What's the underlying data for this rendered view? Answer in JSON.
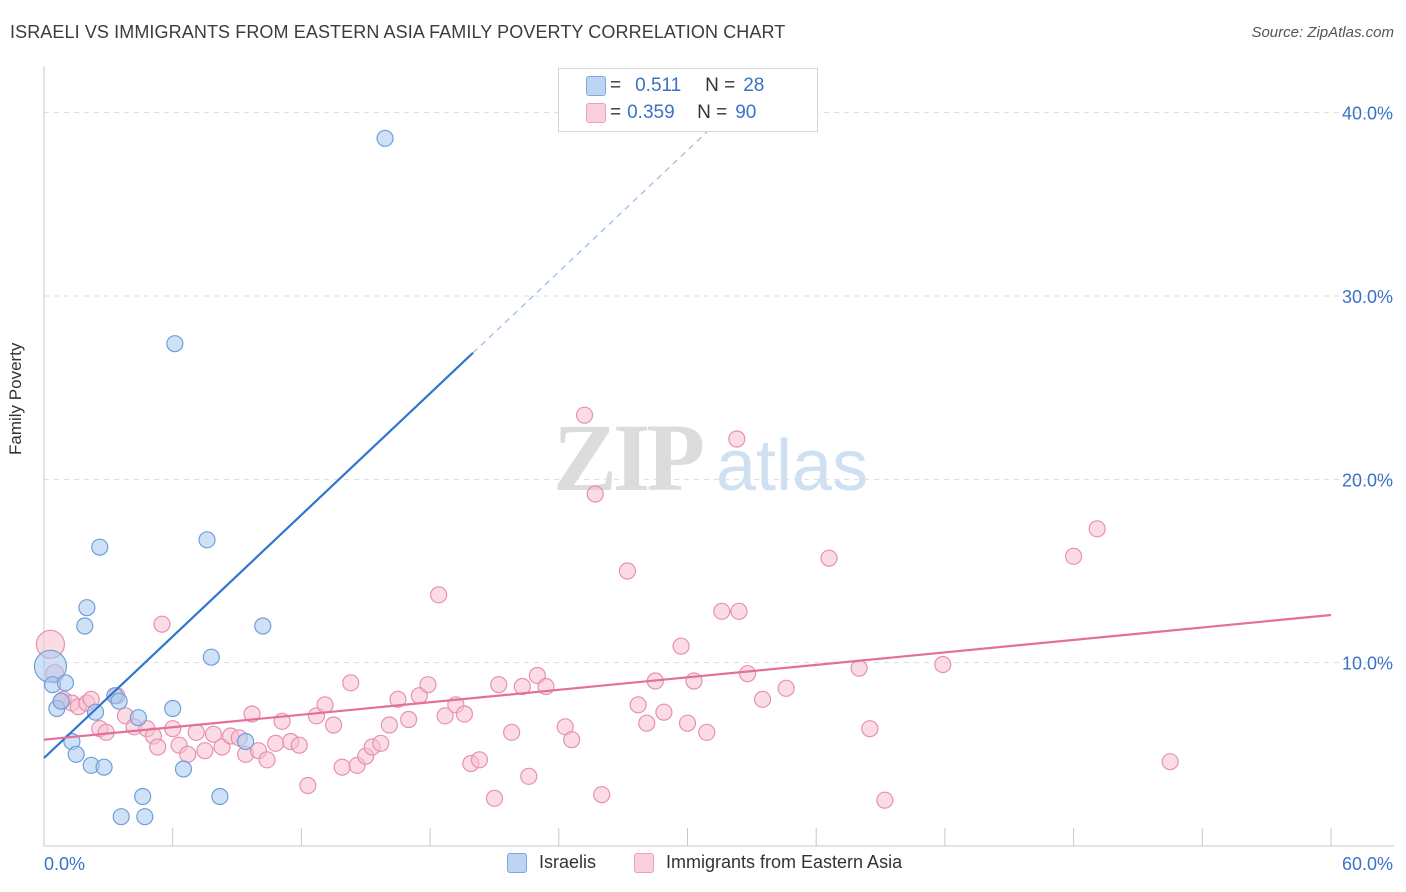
{
  "title": "ISRAELI VS IMMIGRANTS FROM EASTERN ASIA FAMILY POVERTY CORRELATION CHART",
  "source": "Source: ZipAtlas.com",
  "watermark": {
    "zip": "ZIP",
    "atlas": "atlas"
  },
  "legend_top": {
    "rows": [
      {
        "r_label": "R =",
        "r_value": "0.511",
        "n_label": "N =",
        "n_value": "28"
      },
      {
        "r_label": "R =",
        "r_value": "0.359",
        "n_label": "N =",
        "n_value": "90"
      }
    ]
  },
  "legend_bottom": {
    "items": [
      "Israelis",
      "Immigrants from Eastern Asia"
    ]
  },
  "colors": {
    "israelis_fill": "#a8c8f0",
    "israelis_stroke": "#6f9fd8",
    "israelis_line": "#2f74d0",
    "eastasia_fill": "#f8bfd0",
    "eastasia_stroke": "#e890ae",
    "eastasia_line": "#e2709a",
    "tick_label": "#3a72c7",
    "grid": "#dddddd"
  },
  "chart_data": {
    "type": "scatter",
    "title": "ISRAELI VS IMMIGRANTS FROM EASTERN ASIA FAMILY POVERTY CORRELATION CHART",
    "xlabel": "",
    "ylabel": "Family Poverty",
    "xlim": [
      0,
      60
    ],
    "ylim": [
      0,
      42
    ],
    "x_tick_labels": [
      "0.0%",
      "60.0%"
    ],
    "y_ticks": [
      10,
      20,
      30,
      40
    ],
    "y_tick_labels": [
      "10.0%",
      "20.0%",
      "30.0%",
      "40.0%"
    ],
    "grid": true,
    "legend_position": "top-center",
    "series": [
      {
        "name": "Israelis",
        "r": 0.511,
        "n": 28,
        "trend": {
          "x0": 0,
          "y0": 4.8,
          "x1": 20,
          "y1": 26.9,
          "dashed_to_x": 32.5
        },
        "points": [
          [
            0.3,
            9.8,
            16
          ],
          [
            0.4,
            8.8,
            8
          ],
          [
            0.6,
            7.5,
            8
          ],
          [
            0.8,
            7.9,
            8
          ],
          [
            1.0,
            8.9,
            8
          ],
          [
            1.3,
            5.7,
            8
          ],
          [
            1.5,
            5.0,
            8
          ],
          [
            1.9,
            12.0,
            8
          ],
          [
            2.0,
            13.0,
            8
          ],
          [
            2.2,
            4.4,
            8
          ],
          [
            2.4,
            7.3,
            8
          ],
          [
            2.6,
            16.3,
            8
          ],
          [
            2.8,
            4.3,
            8
          ],
          [
            3.3,
            8.2,
            8
          ],
          [
            3.5,
            7.9,
            8
          ],
          [
            3.6,
            1.6,
            8
          ],
          [
            4.4,
            7.0,
            8
          ],
          [
            4.6,
            2.7,
            8
          ],
          [
            4.7,
            1.6,
            8
          ],
          [
            6.0,
            7.5,
            8
          ],
          [
            6.1,
            27.4,
            8
          ],
          [
            6.5,
            4.2,
            8
          ],
          [
            7.6,
            16.7,
            8
          ],
          [
            7.8,
            10.3,
            8
          ],
          [
            8.2,
            2.7,
            8
          ],
          [
            9.4,
            5.7,
            8
          ],
          [
            10.2,
            12.0,
            8
          ],
          [
            15.9,
            38.6,
            8
          ]
        ]
      },
      {
        "name": "Immigrants from Eastern Asia",
        "r": 0.359,
        "n": 90,
        "trend": {
          "x0": 0,
          "y0": 5.8,
          "x1": 60,
          "y1": 12.6
        },
        "points": [
          [
            0.3,
            11.0,
            14
          ],
          [
            0.5,
            9.4,
            9
          ],
          [
            0.9,
            8.0,
            8
          ],
          [
            1.3,
            7.8,
            8
          ],
          [
            1.6,
            7.6,
            8
          ],
          [
            2.0,
            7.8,
            8
          ],
          [
            2.2,
            8.0,
            8
          ],
          [
            2.6,
            6.4,
            8
          ],
          [
            2.9,
            6.2,
            8
          ],
          [
            3.4,
            8.2,
            8
          ],
          [
            3.8,
            7.1,
            8
          ],
          [
            4.2,
            6.5,
            8
          ],
          [
            4.8,
            6.4,
            8
          ],
          [
            5.1,
            6.0,
            8
          ],
          [
            5.3,
            5.4,
            8
          ],
          [
            5.5,
            12.1,
            8
          ],
          [
            6.0,
            6.4,
            8
          ],
          [
            6.3,
            5.5,
            8
          ],
          [
            6.7,
            5.0,
            8
          ],
          [
            7.1,
            6.2,
            8
          ],
          [
            7.5,
            5.2,
            8
          ],
          [
            7.9,
            6.1,
            8
          ],
          [
            8.3,
            5.4,
            8
          ],
          [
            8.7,
            6.0,
            8
          ],
          [
            9.1,
            5.9,
            8
          ],
          [
            9.4,
            5.0,
            8
          ],
          [
            9.7,
            7.2,
            8
          ],
          [
            10.0,
            5.2,
            8
          ],
          [
            10.4,
            4.7,
            8
          ],
          [
            10.8,
            5.6,
            8
          ],
          [
            11.1,
            6.8,
            8
          ],
          [
            11.5,
            5.7,
            8
          ],
          [
            11.9,
            5.5,
            8
          ],
          [
            12.3,
            3.3,
            8
          ],
          [
            12.7,
            7.1,
            8
          ],
          [
            13.1,
            7.7,
            8
          ],
          [
            13.5,
            6.6,
            8
          ],
          [
            13.9,
            4.3,
            8
          ],
          [
            14.3,
            8.9,
            8
          ],
          [
            14.6,
            4.4,
            8
          ],
          [
            15.0,
            4.9,
            8
          ],
          [
            15.3,
            5.4,
            8
          ],
          [
            15.7,
            5.6,
            8
          ],
          [
            16.1,
            6.6,
            8
          ],
          [
            16.5,
            8.0,
            8
          ],
          [
            17.0,
            6.9,
            8
          ],
          [
            17.5,
            8.2,
            8
          ],
          [
            17.9,
            8.8,
            8
          ],
          [
            18.4,
            13.7,
            8
          ],
          [
            18.7,
            7.1,
            8
          ],
          [
            19.2,
            7.7,
            8
          ],
          [
            19.6,
            7.2,
            8
          ],
          [
            19.9,
            4.5,
            8
          ],
          [
            20.3,
            4.7,
            8
          ],
          [
            21.0,
            2.6,
            8
          ],
          [
            21.2,
            8.8,
            8
          ],
          [
            21.8,
            6.2,
            8
          ],
          [
            22.3,
            8.7,
            8
          ],
          [
            22.6,
            3.8,
            8
          ],
          [
            23.0,
            9.3,
            8
          ],
          [
            23.4,
            8.7,
            8
          ],
          [
            24.3,
            6.5,
            8
          ],
          [
            24.6,
            5.8,
            8
          ],
          [
            25.2,
            23.5,
            8
          ],
          [
            25.7,
            19.2,
            8
          ],
          [
            26.0,
            2.8,
            8
          ],
          [
            27.2,
            15.0,
            8
          ],
          [
            27.7,
            7.7,
            8
          ],
          [
            28.1,
            6.7,
            8
          ],
          [
            28.5,
            9.0,
            8
          ],
          [
            28.9,
            7.3,
            8
          ],
          [
            29.7,
            10.9,
            8
          ],
          [
            30.0,
            6.7,
            8
          ],
          [
            30.3,
            9.0,
            8
          ],
          [
            30.9,
            6.2,
            8
          ],
          [
            31.6,
            12.8,
            8
          ],
          [
            32.3,
            22.2,
            8
          ],
          [
            32.4,
            12.8,
            8
          ],
          [
            32.8,
            9.4,
            8
          ],
          [
            33.5,
            8.0,
            8
          ],
          [
            34.6,
            8.6,
            8
          ],
          [
            36.6,
            15.7,
            8
          ],
          [
            38.0,
            9.7,
            8
          ],
          [
            38.5,
            6.4,
            8
          ],
          [
            39.2,
            2.5,
            8
          ],
          [
            41.9,
            9.9,
            8
          ],
          [
            48.0,
            15.8,
            8
          ],
          [
            49.1,
            17.3,
            8
          ],
          [
            52.5,
            4.6,
            8
          ],
          [
            0.8,
            7.9,
            8
          ]
        ]
      }
    ]
  }
}
